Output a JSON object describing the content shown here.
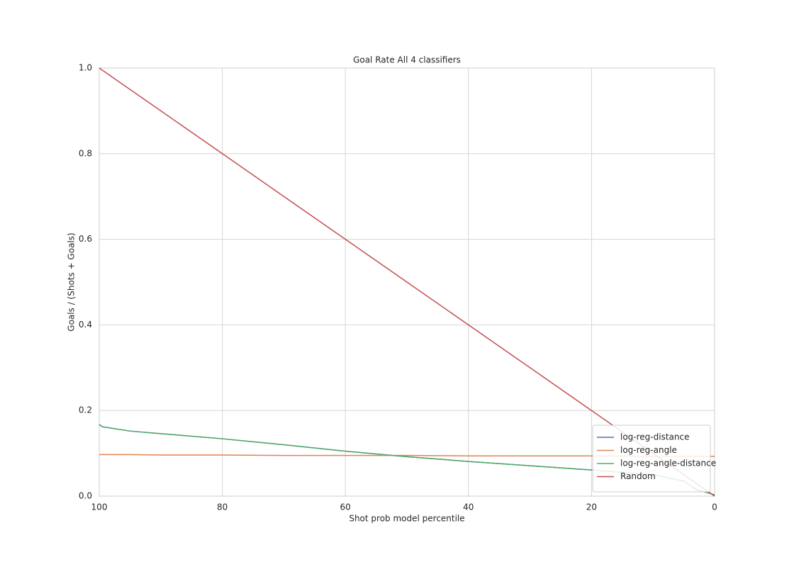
{
  "chart_data": {
    "type": "line",
    "title": "Goal Rate All 4 classifiers",
    "x_label": "Shot prob model percentile",
    "y_label": "Goals / (Shots + Goals)",
    "x": [
      100,
      99.5,
      95,
      90,
      80,
      70,
      60,
      50,
      40,
      30,
      20,
      10,
      5,
      3,
      0
    ],
    "series": [
      {
        "name": "log-reg-distance",
        "color": "#4c72b0",
        "values": [
          0.167,
          0.162,
          0.152,
          0.146,
          0.134,
          0.12,
          0.105,
          0.092,
          0.081,
          0.071,
          0.061,
          0.05,
          0.035,
          0.016,
          0.003
        ]
      },
      {
        "name": "log-reg-angle",
        "color": "#dd8452",
        "values": [
          0.097,
          0.097,
          0.097,
          0.096,
          0.096,
          0.095,
          0.095,
          0.095,
          0.094,
          0.094,
          0.094,
          0.093,
          0.093,
          0.093,
          0.093
        ]
      },
      {
        "name": "log-reg-angle-distance",
        "color": "#55a868",
        "values": [
          0.168,
          0.162,
          0.152,
          0.146,
          0.134,
          0.12,
          0.105,
          0.092,
          0.081,
          0.071,
          0.061,
          0.05,
          0.035,
          0.015,
          0.003
        ]
      },
      {
        "name": "Random",
        "color": "#c44e52",
        "values": [
          1.0,
          0.995,
          0.95,
          0.9,
          0.8,
          0.7,
          0.6,
          0.5,
          0.4,
          0.3,
          0.2,
          0.1,
          0.05,
          0.03,
          0.0
        ]
      }
    ],
    "xlim": [
      100,
      0
    ],
    "ylim": [
      0,
      1
    ],
    "xticks": [
      100,
      80,
      60,
      40,
      20,
      0
    ],
    "yticks": [
      {
        "value": 0,
        "label": "0.0"
      },
      0.2,
      0.4,
      0.6,
      0.8,
      {
        "value": 1,
        "label": "1.0"
      }
    ],
    "grid": true,
    "legend": "lower right"
  }
}
